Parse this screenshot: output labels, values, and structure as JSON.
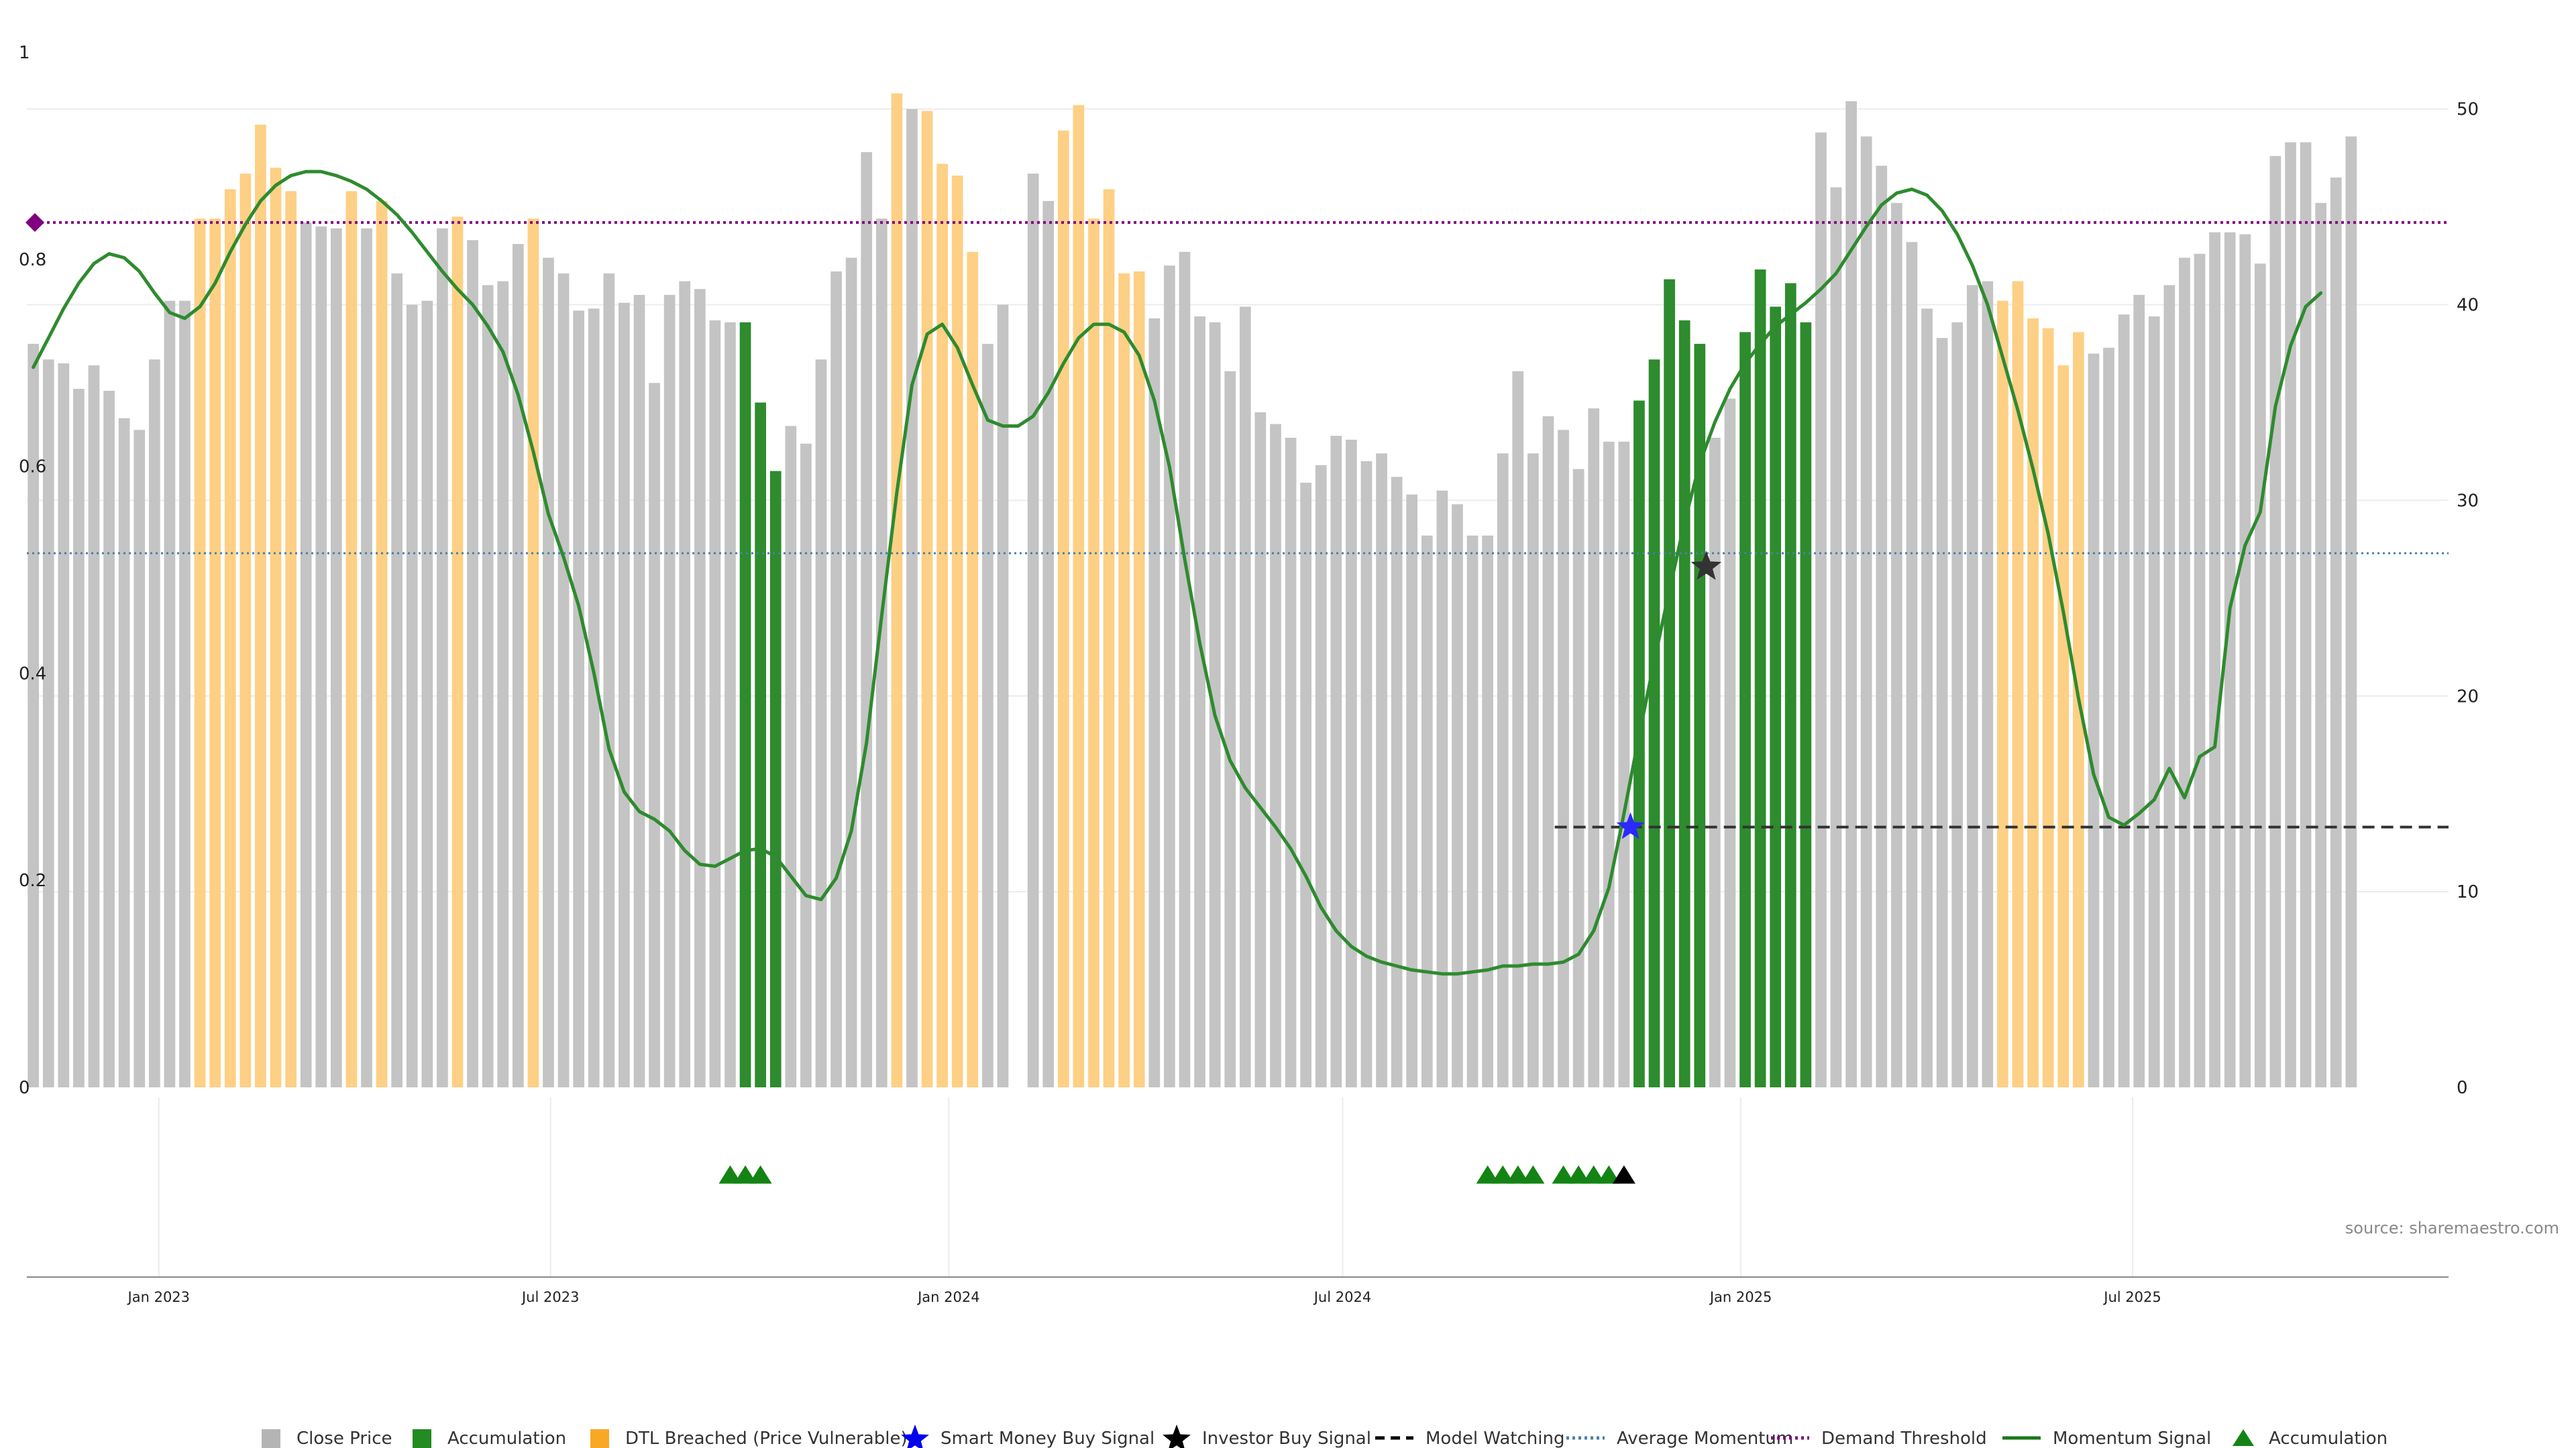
{
  "chart_data": {
    "type": "bar",
    "title": "",
    "source": "source: sharemaestro.com",
    "left_axis": {
      "ticks": [
        "0",
        "0.2",
        "0.4",
        "0.6",
        "0.8",
        "1"
      ],
      "values": [
        0,
        0.2,
        0.4,
        0.6,
        0.8,
        1
      ],
      "ylim": [
        0,
        1
      ]
    },
    "right_axis": {
      "ticks": [
        "0",
        "10",
        "20",
        "30",
        "40",
        "50"
      ],
      "values": [
        0,
        10,
        20,
        30,
        40,
        50
      ],
      "ylim": [
        0,
        52.9
      ]
    },
    "x_ticks": [
      {
        "label": "Jan 2023",
        "date": "2023-01-01"
      },
      {
        "label": "Jul 2023",
        "date": "2023-07-01"
      },
      {
        "label": "Jan 2024",
        "date": "2024-01-01"
      },
      {
        "label": "Jul 2024",
        "date": "2024-07-01"
      },
      {
        "label": "Jan 2025",
        "date": "2025-01-01"
      },
      {
        "label": "Jul 2025",
        "date": "2025-07-01"
      }
    ],
    "x_range": [
      "2022-11-01",
      "2025-11-24"
    ],
    "grid": true,
    "legend_position": "bottom",
    "colors": {
      "close": "#c4c4c4",
      "accumulation": "#2e8b2e",
      "dtl": "#fdd085",
      "momentum": "#2e8b2e",
      "avg": "#4a7faa",
      "demand": "#800080",
      "watch": "#333333",
      "smart": "#2a2aff",
      "investor": "#333333"
    },
    "weekly_start": "2022-11-04",
    "bar_states_key": "G = Close Price, A = Accumulation, D = DTL Breached (Price Vulnerable)",
    "close_price": [
      38.0,
      37.2,
      37.0,
      35.7,
      36.9,
      35.6,
      34.2,
      33.6,
      37.2,
      40.2,
      40.2,
      44.4,
      44.4,
      45.9,
      46.7,
      49.2,
      47.0,
      45.8,
      44.2,
      44.0,
      43.9,
      45.8,
      43.9,
      45.3,
      41.6,
      40.0,
      40.2,
      43.9,
      44.5,
      43.3,
      41.0,
      41.2,
      43.1,
      44.4,
      42.4,
      41.6,
      39.7,
      39.8,
      41.6,
      40.1,
      40.5,
      36.0,
      40.5,
      41.2,
      40.8,
      39.2,
      39.1,
      39.1,
      35.0,
      31.5,
      33.8,
      32.9,
      37.2,
      41.7,
      42.4,
      47.8,
      44.4,
      50.8,
      50.0,
      49.9,
      47.2,
      46.6,
      42.7,
      38.0,
      40.0,
      0,
      46.7,
      45.3,
      48.9,
      50.2,
      44.4,
      45.9,
      41.6,
      41.7,
      39.3,
      42.0,
      42.7,
      39.4,
      39.1,
      36.6,
      39.9,
      34.5,
      33.9,
      33.2,
      30.9,
      31.8,
      33.3,
      33.1,
      32.0,
      32.4,
      31.2,
      30.3,
      28.2,
      30.5,
      29.8,
      28.2,
      28.2,
      32.4,
      36.6,
      32.4,
      34.3,
      33.6,
      31.6,
      34.7,
      33.0,
      33.0,
      35.1,
      37.2,
      41.3,
      39.2,
      38.0,
      33.2,
      35.2,
      38.6,
      41.8,
      39.9,
      41.1,
      39.1,
      48.8,
      46.0,
      50.4,
      48.6,
      47.1,
      45.2,
      43.2,
      39.8,
      38.3,
      39.1,
      41.0,
      41.2,
      40.2,
      41.2,
      39.3,
      38.8,
      36.9,
      38.6,
      37.5,
      37.8,
      39.5,
      40.5,
      39.4,
      41.0,
      42.4,
      42.6,
      43.7,
      43.7,
      43.6,
      42.1,
      47.6,
      48.3,
      48.3,
      45.2,
      46.5,
      48.6
    ],
    "bar_states": "GGGGGGGGGGGDDDDDDDGGGDGDGGGGDGGGGDGGGGGGGGGGGGGAAAGGGGGGGDGDDDDGGGGGDDDDDDGGGGGGGGGGGGGGGGGGGGGGGGGGGGGGGGAAAAAGGAAAAAGGGGGGGGGGGGDDDDDDGGGGGGGGGGGGGGGGGGGGGGGGGGGGGDDDDDD",
    "momentum_signal": [
      36.8,
      38.3,
      39.8,
      41.1,
      42.1,
      42.6,
      42.4,
      41.7,
      40.6,
      39.6,
      39.3,
      39.9,
      41.1,
      42.7,
      44.1,
      45.3,
      46.1,
      46.6,
      46.8,
      46.8,
      46.6,
      46.3,
      45.9,
      45.3,
      44.6,
      43.7,
      42.7,
      41.7,
      40.8,
      40.0,
      38.9,
      37.6,
      35.4,
      32.5,
      29.3,
      27.1,
      24.6,
      21.2,
      17.3,
      15.1,
      14.1,
      13.7,
      13.1,
      12.1,
      11.4,
      11.3,
      11.7,
      12.1,
      12.2,
      11.8,
      10.8,
      9.8,
      9.6,
      10.7,
      13.1,
      17.6,
      24.1,
      30.4,
      35.9,
      38.5,
      39.0,
      37.8,
      35.9,
      34.1,
      33.8,
      33.8,
      34.3,
      35.5,
      37.0,
      38.3,
      39.0,
      39.0,
      38.6,
      37.4,
      35.1,
      31.7,
      27.0,
      22.7,
      19.0,
      16.7,
      15.3,
      14.3,
      13.3,
      12.2,
      10.8,
      9.2,
      8.0,
      7.2,
      6.7,
      6.4,
      6.2,
      6.0,
      5.9,
      5.8,
      5.8,
      5.9,
      6.0,
      6.2,
      6.2,
      6.3,
      6.3,
      6.4,
      6.8,
      8.0,
      10.2,
      14.0,
      18.0,
      21.8,
      25.4,
      28.9,
      31.9,
      34.0,
      35.7,
      37.0,
      38.0,
      38.9,
      39.5,
      40.1,
      40.8,
      41.6,
      42.8,
      44.0,
      45.1,
      45.7,
      45.9,
      45.6,
      44.8,
      43.6,
      42.0,
      40.0,
      37.3,
      34.6,
      31.6,
      28.3,
      24.3,
      19.9,
      16.0,
      13.8,
      13.4,
      14.0,
      14.7,
      16.3,
      14.8,
      16.9,
      17.4,
      24.5,
      27.7,
      29.4,
      34.8,
      37.9,
      39.9,
      40.6
    ],
    "average_momentum": 27.3,
    "demand_threshold": 44.2,
    "model_watching": {
      "start": "2024-10-07",
      "end": "2025-11-24",
      "value": 13.3
    },
    "smart_money_buy_signal": [
      {
        "date": "2024-11-11",
        "value": 13.3
      }
    ],
    "investor_buy_signal": [
      {
        "date": "2024-12-16",
        "value": 26.6
      }
    ],
    "accumulation_markers": [
      "2023-09-22",
      "2023-09-29",
      "2023-10-06",
      "2024-09-06",
      "2024-09-13",
      "2024-09-20",
      "2024-09-27",
      "2024-10-11",
      "2024-10-18",
      "2024-10-25",
      "2024-11-01"
    ],
    "accumulation_marker_black": [
      "2024-11-08"
    ],
    "legend": [
      {
        "label": "Close Price",
        "icon": "grey-square-icon",
        "color": "#b4b4b4"
      },
      {
        "label": "Accumulation",
        "icon": "green-square-icon",
        "color": "#228b22"
      },
      {
        "label": "DTL Breached (Price Vulnerable)",
        "icon": "orange-square-icon",
        "color": "#f9a825"
      },
      {
        "label": "Smart Money Buy Signal",
        "icon": "blue-star-icon",
        "color": "#0000ee"
      },
      {
        "label": "Investor Buy Signal",
        "icon": "black-star-icon",
        "color": "#000000"
      },
      {
        "label": "Model Watching",
        "icon": "dashed-line-icon",
        "color": "#000000"
      },
      {
        "label": "Average Momentum",
        "icon": "dotted-blue-line-icon",
        "color": "#4a7faa"
      },
      {
        "label": "Demand Threshold",
        "icon": "dotted-purple-line-icon",
        "color": "#800080"
      },
      {
        "label": "Momentum Signal",
        "icon": "green-line-icon",
        "color": "#1a7a1a"
      },
      {
        "label": "Accumulation",
        "icon": "green-triangle-icon",
        "color": "#138413"
      }
    ]
  }
}
